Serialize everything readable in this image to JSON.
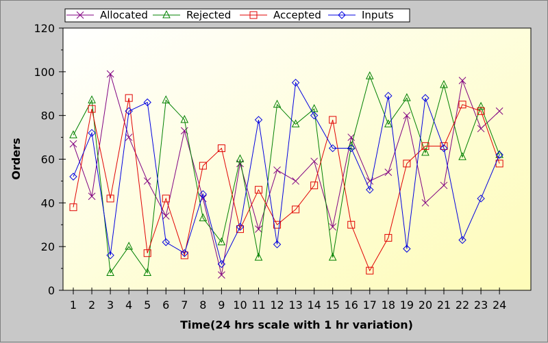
{
  "chart_data": {
    "type": "line",
    "xlabel": "Time(24 hrs scale with 1 hr variation)",
    "ylabel": "Orders",
    "ylim": [
      0,
      120
    ],
    "yticks": [
      0,
      20,
      40,
      60,
      80,
      100,
      120
    ],
    "x": [
      1,
      2,
      3,
      4,
      5,
      6,
      7,
      8,
      9,
      10,
      11,
      12,
      13,
      14,
      15,
      16,
      17,
      18,
      19,
      20,
      21,
      22,
      23,
      24
    ],
    "grid": false,
    "legend_position": "top",
    "series": [
      {
        "name": "Allocated",
        "color": "#800080",
        "marker": "cross",
        "values": [
          67,
          43,
          99,
          70,
          50,
          34,
          73,
          42,
          7,
          58,
          28,
          55,
          50,
          59,
          29,
          70,
          50,
          54,
          80,
          40,
          48,
          96,
          74,
          82
        ]
      },
      {
        "name": "Rejected",
        "color": "#008000",
        "marker": "triangle",
        "values": [
          71,
          87,
          8,
          20,
          8,
          87,
          78,
          33,
          22,
          60,
          15,
          85,
          76,
          83,
          15,
          66,
          98,
          76,
          88,
          63,
          94,
          61,
          84,
          62
        ]
      },
      {
        "name": "Accepted",
        "color": "#e00000",
        "marker": "square",
        "values": [
          38,
          83,
          42,
          88,
          17,
          42,
          16,
          57,
          65,
          28,
          46,
          30,
          37,
          48,
          78,
          30,
          9,
          24,
          58,
          66,
          66,
          85,
          82,
          58
        ]
      },
      {
        "name": "Inputs",
        "color": "#0000e0",
        "marker": "diamond",
        "values": [
          52,
          72,
          16,
          82,
          86,
          22,
          17,
          44,
          12,
          29,
          78,
          21,
          95,
          80,
          65,
          65,
          46,
          89,
          19,
          88,
          65,
          23,
          42,
          62
        ]
      }
    ]
  }
}
